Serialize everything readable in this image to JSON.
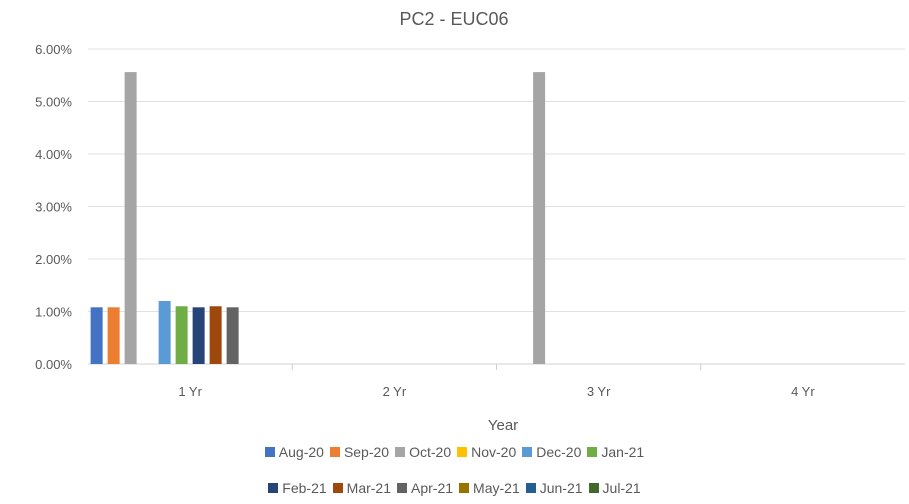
{
  "chart_data": {
    "type": "bar",
    "title": "PC2 - EUC06",
    "xlabel": "Year",
    "ylabel": "",
    "categories": [
      "1 Yr",
      "2 Yr",
      "3 Yr",
      "4 Yr"
    ],
    "ylim": [
      0,
      0.06
    ],
    "yticks": [
      "0.00%",
      "1.00%",
      "2.00%",
      "3.00%",
      "4.00%",
      "5.00%",
      "6.00%"
    ],
    "grid": true,
    "legend_placement": "bottom",
    "series": [
      {
        "name": "Aug-20",
        "color": "#4472C4",
        "values": [
          0.0108,
          0,
          0,
          0
        ]
      },
      {
        "name": "Sep-20",
        "color": "#ED7D31",
        "values": [
          0.0108,
          0,
          0,
          0
        ]
      },
      {
        "name": "Oct-20",
        "color": "#A5A5A5",
        "values": [
          0.0556,
          0,
          0.0556,
          0
        ]
      },
      {
        "name": "Nov-20",
        "color": "#FFC000",
        "values": [
          0,
          0,
          0,
          0
        ]
      },
      {
        "name": "Dec-20",
        "color": "#5B9BD5",
        "values": [
          0.012,
          0,
          0,
          0
        ]
      },
      {
        "name": "Jan-21",
        "color": "#70AD47",
        "values": [
          0.011,
          0,
          0,
          0
        ]
      },
      {
        "name": "Feb-21",
        "color": "#264478",
        "values": [
          0.0108,
          0,
          0,
          0
        ]
      },
      {
        "name": "Mar-21",
        "color": "#9E480E",
        "values": [
          0.011,
          0,
          0,
          0
        ]
      },
      {
        "name": "Apr-21",
        "color": "#636363",
        "values": [
          0.0108,
          0,
          0,
          0
        ]
      },
      {
        "name": "May-21",
        "color": "#997300",
        "values": [
          0,
          0,
          0,
          0
        ]
      },
      {
        "name": "Jun-21",
        "color": "#255E91",
        "values": [
          0,
          0,
          0,
          0
        ]
      },
      {
        "name": "Jul-21",
        "color": "#43682B",
        "values": [
          0,
          0,
          0,
          0
        ]
      }
    ]
  }
}
